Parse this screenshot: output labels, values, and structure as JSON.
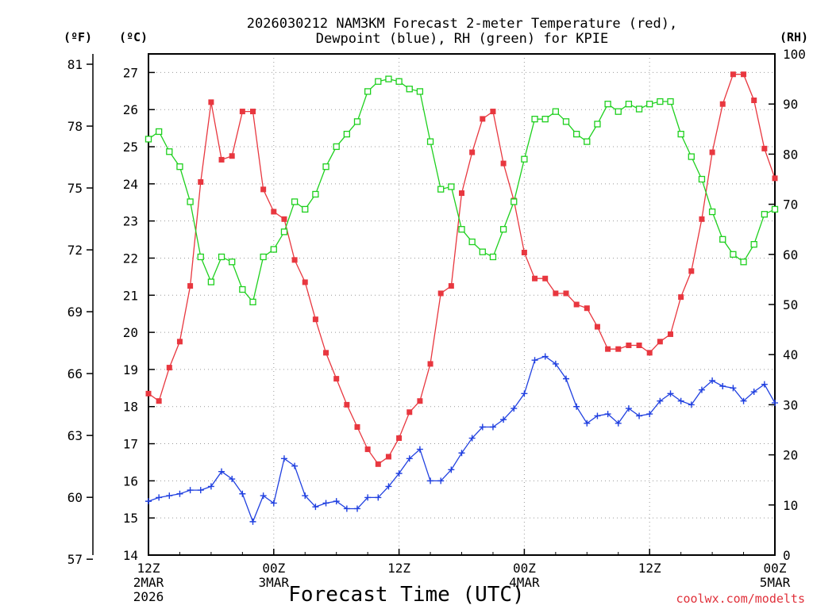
{
  "chart_data": {
    "type": "line",
    "title_line1": "2026030212 NAM3KM Forecast 2-meter Temperature (red),",
    "title_line2": "Dewpoint (blue), RH (green) for KPIE",
    "xlabel": "Forecast Time (UTC)",
    "credit": "coolwx.com/modelts",
    "units": {
      "left_outer": "(ºF)",
      "left_inner": "(ºC)",
      "right": "(RH)"
    },
    "celsius_axis": {
      "min": 14,
      "max": 27.5,
      "ticks": [
        "14",
        "15",
        "16",
        "17",
        "18",
        "19",
        "20",
        "21",
        "22",
        "23",
        "24",
        "25",
        "26",
        "27"
      ]
    },
    "fahrenheit_axis": {
      "ticks": [
        "57",
        "60",
        "63",
        "66",
        "69",
        "72",
        "75",
        "78",
        "81"
      ]
    },
    "rh_axis": {
      "min": 0,
      "max": 100,
      "ticks": [
        "0",
        "10",
        "20",
        "30",
        "40",
        "50",
        "60",
        "70",
        "80",
        "90",
        "100"
      ]
    },
    "x_axis": {
      "min_hour": 0,
      "max_hour": 60
    },
    "x_ticks": [
      {
        "hour": 0,
        "l1": "12Z",
        "l2": "2MAR",
        "l3": "2026"
      },
      {
        "hour": 12,
        "l1": "00Z",
        "l2": "3MAR",
        "l3": ""
      },
      {
        "hour": 24,
        "l1": "12Z",
        "l2": "",
        "l3": ""
      },
      {
        "hour": 36,
        "l1": "00Z",
        "l2": "4MAR",
        "l3": ""
      },
      {
        "hour": 48,
        "l1": "12Z",
        "l2": "",
        "l3": ""
      },
      {
        "hour": 60,
        "l1": "00Z",
        "l2": "5MAR",
        "l3": ""
      }
    ],
    "series": [
      {
        "name": "Temperature",
        "unit": "C",
        "color": "#e8373f",
        "marker": "filled-square",
        "values": [
          18.35,
          18.15,
          19.05,
          19.75,
          21.25,
          24.05,
          26.2,
          24.65,
          24.75,
          25.95,
          25.95,
          23.85,
          23.25,
          23.05,
          21.95,
          21.35,
          20.35,
          19.45,
          18.75,
          18.05,
          17.45,
          16.85,
          16.45,
          16.65,
          17.15,
          17.85,
          18.15,
          19.15,
          21.05,
          21.25,
          23.75,
          24.85,
          25.75,
          25.95,
          24.55,
          23.55,
          22.15,
          21.45,
          21.45,
          21.05,
          21.05,
          20.75,
          20.65,
          20.15,
          19.55,
          19.55,
          19.65,
          19.65,
          19.45,
          19.75,
          19.95,
          20.95,
          21.65,
          23.05,
          24.85,
          26.15,
          26.95,
          26.95,
          26.25,
          24.95,
          24.15
        ]
      },
      {
        "name": "Dewpoint",
        "unit": "C",
        "color": "#2040e0",
        "marker": "plus",
        "values": [
          15.45,
          15.55,
          15.6,
          15.65,
          15.75,
          15.75,
          15.85,
          16.25,
          16.05,
          15.65,
          14.9,
          15.6,
          15.4,
          16.6,
          16.4,
          15.6,
          15.3,
          15.4,
          15.45,
          15.25,
          15.25,
          15.55,
          15.55,
          15.85,
          16.2,
          16.6,
          16.85,
          16.0,
          16.0,
          16.3,
          16.75,
          17.15,
          17.45,
          17.45,
          17.65,
          17.95,
          18.35,
          19.25,
          19.35,
          19.15,
          18.75,
          18.0,
          17.55,
          17.75,
          17.8,
          17.55,
          17.95,
          17.75,
          17.8,
          18.15,
          18.35,
          18.15,
          18.05,
          18.45,
          18.7,
          18.55,
          18.5,
          18.15,
          18.4,
          18.6,
          18.1
        ]
      },
      {
        "name": "RH",
        "unit": "%",
        "color": "#1ed01e",
        "marker": "open-square",
        "values": [
          83,
          84.5,
          80.5,
          77.5,
          70.5,
          59.5,
          54.5,
          59.5,
          58.5,
          53,
          50.5,
          59.5,
          61,
          64.5,
          70.5,
          69,
          72,
          77.5,
          81.5,
          84,
          86.5,
          92.5,
          94.5,
          95,
          94.5,
          93,
          92.5,
          82.5,
          73,
          73.5,
          65,
          62.5,
          60.5,
          59.5,
          65,
          70.5,
          79,
          87,
          87,
          88.5,
          86.5,
          84,
          82.5,
          86,
          90,
          88.5,
          90,
          89,
          90,
          90.5,
          90.5,
          84,
          79.5,
          75,
          68.5,
          63,
          60,
          58.5,
          62,
          68,
          69
        ]
      }
    ]
  }
}
